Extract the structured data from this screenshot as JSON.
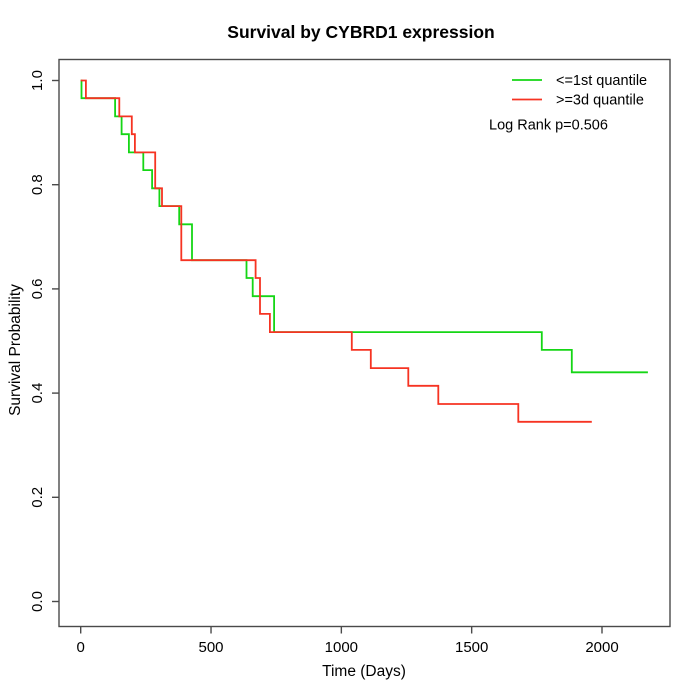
{
  "chart_data": {
    "type": "line",
    "subtype": "kaplan-meier-step",
    "title": "Survival by CYBRD1 expression",
    "xlabel": "Time (Days)",
    "ylabel": "Survival Probability",
    "xlim": [
      0,
      2200
    ],
    "ylim": [
      0.0,
      1.0
    ],
    "x_axis_ticks": [
      0,
      500,
      1000,
      1500,
      2000
    ],
    "y_axis_ticks": [
      0.0,
      0.2,
      0.4,
      0.6,
      0.8,
      1.0
    ],
    "grid": "off",
    "legend_position": "top-right",
    "series": [
      {
        "name": "<=1st quantile",
        "color": "#15D615",
        "start": [
          0,
          1.0
        ],
        "steps": [
          [
            3,
            0.966
          ],
          [
            132,
            0.931
          ],
          [
            157,
            0.897
          ],
          [
            185,
            0.862
          ],
          [
            240,
            0.828
          ],
          [
            274,
            0.793
          ],
          [
            302,
            0.759
          ],
          [
            378,
            0.724
          ],
          [
            427,
            0.655
          ],
          [
            636,
            0.621
          ],
          [
            660,
            0.586
          ],
          [
            742,
            0.517
          ],
          [
            1769,
            0.483
          ],
          [
            1884,
            0.44
          ]
        ],
        "end_time": 2176
      },
      {
        "name": ">=3d quantile",
        "color": "#F63322",
        "start": [
          0,
          1.0
        ],
        "steps": [
          [
            20,
            0.966
          ],
          [
            148,
            0.931
          ],
          [
            196,
            0.897
          ],
          [
            208,
            0.862
          ],
          [
            286,
            0.793
          ],
          [
            312,
            0.759
          ],
          [
            386,
            0.655
          ],
          [
            671,
            0.621
          ],
          [
            688,
            0.552
          ],
          [
            726,
            0.517
          ],
          [
            1040,
            0.483
          ],
          [
            1113,
            0.448
          ],
          [
            1257,
            0.414
          ],
          [
            1372,
            0.379
          ],
          [
            1679,
            0.345
          ]
        ],
        "end_time": 1961
      }
    ],
    "annotations": [
      {
        "text": "Log Rank p=0.506"
      }
    ]
  }
}
